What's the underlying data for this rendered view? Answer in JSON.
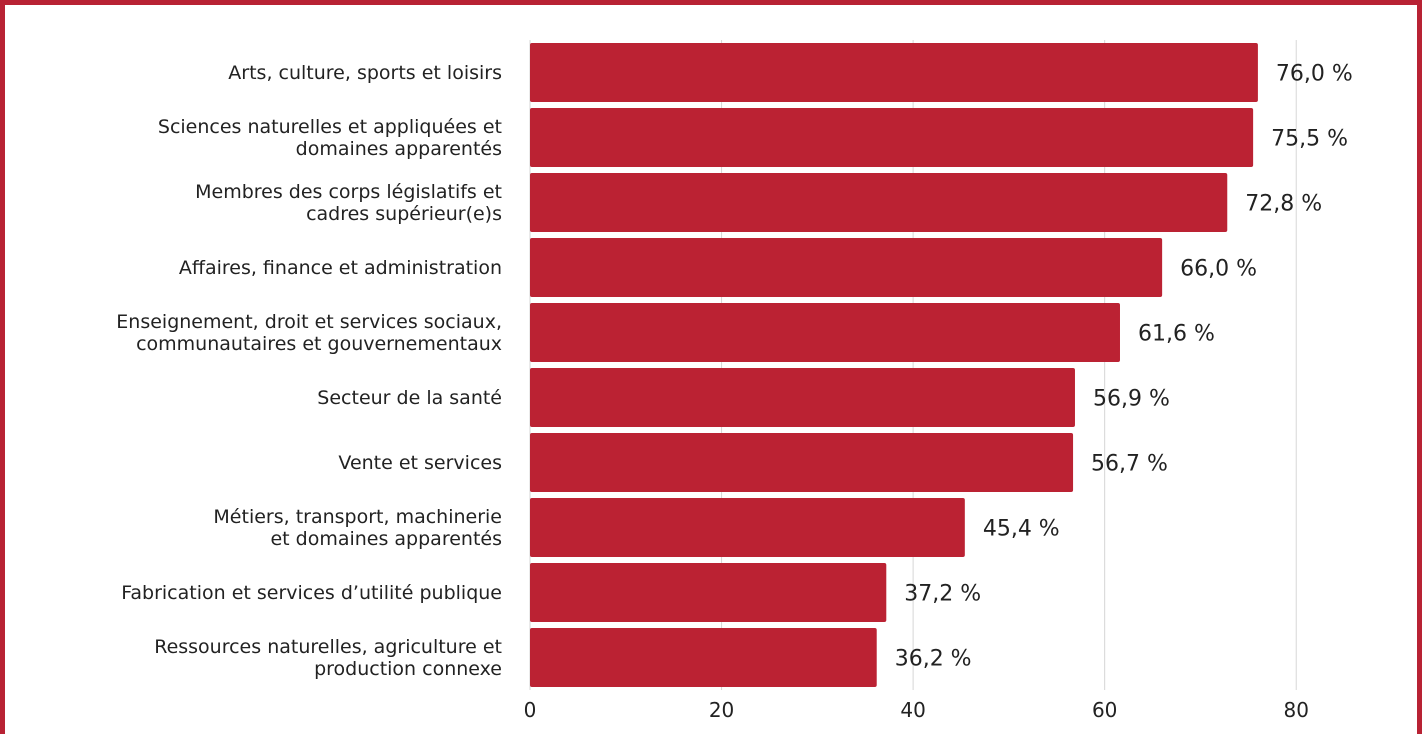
{
  "chart_data": {
    "type": "bar",
    "orientation": "horizontal",
    "categories": [
      "Arts, culture, sports et loisirs",
      "Sciences naturelles et appliquées et\ndomaines apparentés",
      "Membres des corps législatifs et\ncadres supérieur(e)s",
      "Affaires, finance et administration",
      "Enseignement, droit et services sociaux,\ncommunautaires et gouvernementaux",
      "Secteur de la santé",
      "Vente et services",
      "Métiers, transport, machinerie\net domaines apparentés",
      "Fabrication et services d’utilité publique",
      "Ressources naturelles, agriculture et\nproduction connexe"
    ],
    "values": [
      76.0,
      75.5,
      72.8,
      66.0,
      61.6,
      56.9,
      56.7,
      45.4,
      37.2,
      36.2
    ],
    "value_labels": [
      "76,0 %",
      "75,5 %",
      "72,8 %",
      "66,0 %",
      "61,6 %",
      "56,9 %",
      "56,7 %",
      "45,4 %",
      "37,2 %",
      "36,2 %"
    ],
    "color": "#bb2233",
    "xlim": [
      0,
      90
    ],
    "xticks": [
      0,
      20,
      40,
      60,
      80
    ],
    "grid": true
  }
}
